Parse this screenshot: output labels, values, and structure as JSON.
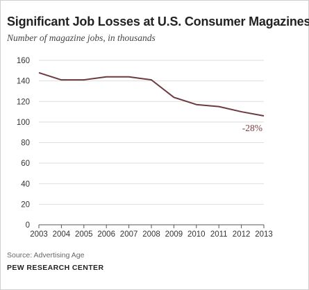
{
  "source": "Source: Advertising Age",
  "organization": "PEW RESEARCH CENTER",
  "chart_data": {
    "type": "line",
    "title": "Significant Job Losses at U.S. Consumer Magazines",
    "subtitle": "Number of magazine jobs, in thousands",
    "xlabel": "",
    "ylabel": "",
    "x": [
      "2003",
      "2004",
      "2005",
      "2006",
      "2007",
      "2008",
      "2009",
      "2010",
      "2011",
      "2012",
      "2013"
    ],
    "series": [
      {
        "values": [
          148,
          141,
          141,
          144,
          144,
          141,
          124,
          117,
          115,
          110,
          106
        ]
      }
    ],
    "yticks": [
      "0",
      "20",
      "40",
      "60",
      "80",
      "100",
      "120",
      "140",
      "160"
    ],
    "ylim": [
      0,
      160
    ],
    "grid": true,
    "annotation": {
      "text": "-28%",
      "x": "2013"
    },
    "colors": {
      "line": "#6b3a3f",
      "grid": "#dedede",
      "annotation": "#7a3b3f"
    }
  }
}
